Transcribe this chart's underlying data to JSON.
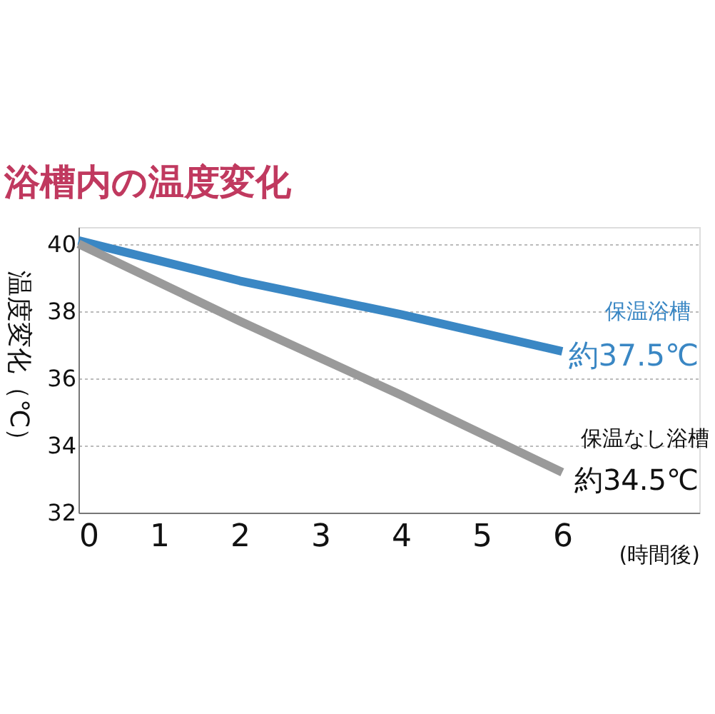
{
  "chart_data": {
    "type": "line",
    "title": "浴槽内の温度変化",
    "xlabel": "(時間後)",
    "ylabel": "温度変化（℃）",
    "x": [
      0,
      2,
      4,
      6
    ],
    "series": [
      {
        "name": "保温浴槽",
        "color": "#3a87c4",
        "values": [
          40.1,
          38.9,
          37.9,
          36.8
        ]
      },
      {
        "name": "保温なし浴槽",
        "color": "#9a9a9a",
        "values": [
          40.0,
          37.7,
          35.5,
          33.2
        ]
      }
    ],
    "annotations": [
      "約37.5℃",
      "約34.5℃"
    ],
    "xlim": [
      0,
      7.7
    ],
    "xticks": [
      0,
      1,
      2,
      3,
      4,
      5,
      6
    ],
    "ylim": [
      32,
      40.5
    ],
    "yticks": [
      32,
      34,
      36,
      38,
      40
    ],
    "grid": "y",
    "marker": "none",
    "line_style": "solid"
  }
}
